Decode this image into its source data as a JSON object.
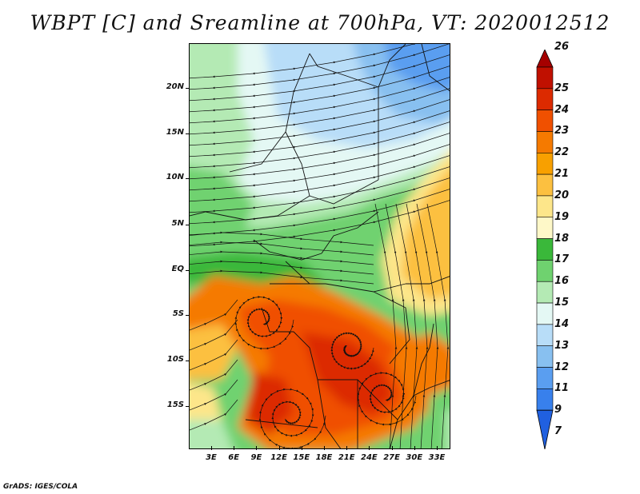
{
  "title": "WBPT [C] and Sreamline at 700hPa, VT: 2020012512",
  "credit": "GrADS: IGES/COLA",
  "lat_labels": [
    "20N",
    "15N",
    "10N",
    "5N",
    "EQ",
    "5S",
    "10S",
    "15S"
  ],
  "lon_labels": [
    "3E",
    "6E",
    "9E",
    "12E",
    "15E",
    "18E",
    "21E",
    "24E",
    "27E",
    "30E",
    "33E"
  ],
  "colorbar": {
    "labels": [
      "26",
      "25",
      "24",
      "23",
      "22",
      "21",
      "20",
      "19",
      "18",
      "17",
      "16",
      "15",
      "14",
      "13",
      "12",
      "11",
      "9",
      "7"
    ],
    "colors": [
      "#a50000",
      "#c01000",
      "#dc2a00",
      "#f05000",
      "#f57a00",
      "#f8a000",
      "#fcc040",
      "#fde68a",
      "#fef8c8",
      "#3ab83a",
      "#6fd26f",
      "#b4eab4",
      "#e4f8f4",
      "#b8ddf8",
      "#88c0f0",
      "#5a9ef0",
      "#3880ec",
      "#2060e0"
    ]
  },
  "field_colors": {
    "very_cold": "#5a9ef0",
    "cold": "#88c0f0",
    "cool": "#b8ddf8",
    "pale": "#e4f8f4",
    "light_green": "#b4eab4",
    "green": "#6fd26f",
    "dark_green": "#3ab83a",
    "cream": "#fef8c8",
    "yellow": "#fde68a",
    "light_orange": "#fcc040",
    "orange": "#f57a00",
    "deep_orange": "#f05000",
    "red": "#dc2a00"
  }
}
